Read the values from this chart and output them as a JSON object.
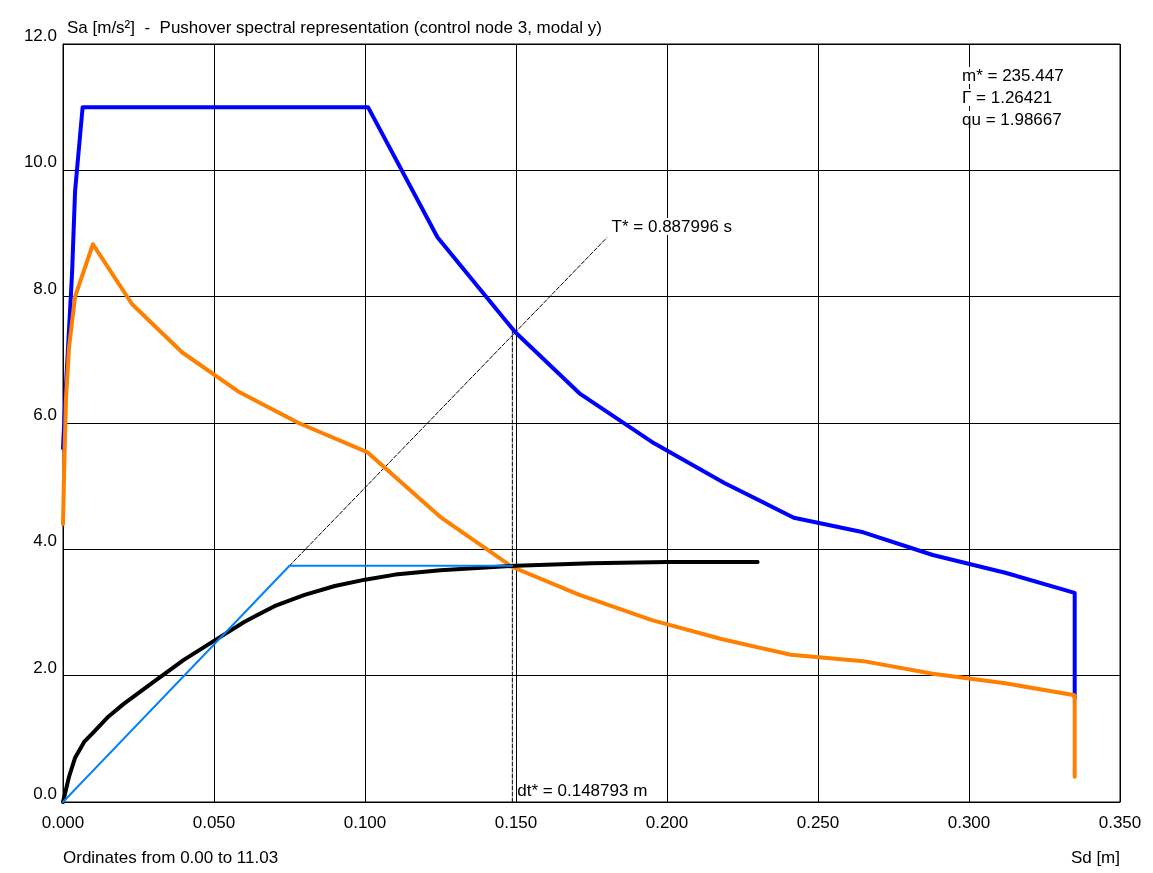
{
  "chart_data": {
    "type": "line",
    "title": "Sa [m/s²]  -  Pushover spectral representation (control node 3, modal y)",
    "xlabel": "Sd [m]",
    "annotations": [
      "Ordinates from 0.00 to 11.03",
      "m* = 235.447",
      "Γ = 1.26421",
      "qu = 1.98667",
      {
        "text": "T* = 0.887996 s",
        "x": 0.18,
        "y": 8.93
      },
      {
        "text": "dt* = 0.148793 m",
        "x": 0.148793,
        "y": 0
      }
    ],
    "xlim": [
      0,
      0.35
    ],
    "xticks": [
      {
        "value": 0,
        "label": "0.000"
      },
      {
        "value": 0.05,
        "label": "0.050"
      },
      {
        "value": 0.1,
        "label": "0.100"
      },
      {
        "value": 0.15,
        "label": "0.150"
      },
      {
        "value": 0.2,
        "label": "0.200"
      },
      {
        "value": 0.25,
        "label": "0.250"
      },
      {
        "value": 0.3,
        "label": "0.300"
      },
      {
        "value": 0.35,
        "label": "0.350"
      }
    ],
    "ylim": [
      0,
      12
    ],
    "yticks": [
      {
        "value": 0,
        "label": "0.0"
      },
      {
        "value": 2,
        "label": "2.0"
      },
      {
        "value": 4,
        "label": "4.0"
      },
      {
        "value": 6,
        "label": "6.0"
      },
      {
        "value": 8,
        "label": "8.0"
      },
      {
        "value": 10,
        "label": "10.0"
      },
      {
        "value": 12,
        "label": "12.0"
      }
    ],
    "grid": true,
    "marker": "none",
    "line_style": "solid",
    "series": [
      {
        "color": "#0000ff",
        "x": [
          0,
          0.001,
          0.003,
          0.004,
          0.0065,
          0.101,
          0.124,
          0.1497,
          0.171,
          0.195,
          0.219,
          0.242,
          0.265,
          0.288,
          0.312,
          0.335,
          0.335
        ],
        "values": [
          5.6,
          6.6,
          8.37,
          9.67,
          11.0,
          11.0,
          8.94,
          7.44,
          6.47,
          5.7,
          5.05,
          4.5,
          4.27,
          3.91,
          3.63,
          3.31,
          1.65
        ]
      },
      {
        "color": "#ff8000",
        "x": [
          0,
          0.0005,
          0.001,
          0.002,
          0.004,
          0.0099,
          0.0229,
          0.0394,
          0.058,
          0.078,
          0.1007,
          0.125,
          0.1488,
          0.171,
          0.195,
          0.218,
          0.241,
          0.265,
          0.288,
          0.312,
          0.335,
          0.335
        ],
        "values": [
          4.4,
          5.5,
          6.4,
          7.2,
          8.0,
          8.83,
          7.88,
          7.12,
          6.5,
          6.0,
          5.54,
          4.51,
          3.72,
          3.28,
          2.88,
          2.58,
          2.33,
          2.23,
          2.03,
          1.88,
          1.69,
          0.4
        ]
      },
      {
        "color": "#000000",
        "x": [
          0,
          0.002,
          0.004,
          0.007,
          0.01,
          0.015,
          0.02,
          0.03,
          0.04,
          0.05,
          0.06,
          0.07,
          0.08,
          0.09,
          0.1,
          0.11,
          0.125,
          0.15,
          0.175,
          0.2,
          0.23
        ],
        "values": [
          0,
          0.4,
          0.7,
          0.95,
          1.1,
          1.35,
          1.55,
          1.9,
          2.25,
          2.55,
          2.85,
          3.1,
          3.28,
          3.42,
          3.52,
          3.6,
          3.67,
          3.74,
          3.78,
          3.8,
          3.8
        ]
      },
      {
        "color": "#0080ff",
        "x": [
          0,
          0.075,
          0.148793
        ],
        "values": [
          0,
          3.74,
          3.74
        ]
      },
      {
        "color": "#000000",
        "line_style": "dashed",
        "x": [
          0.075,
          0.18
        ],
        "values": [
          3.74,
          8.93
        ]
      },
      {
        "color": "#000000",
        "line_style": "dashed",
        "x": [
          0.148793,
          0.148793
        ],
        "values": [
          0,
          7.45
        ]
      }
    ]
  }
}
